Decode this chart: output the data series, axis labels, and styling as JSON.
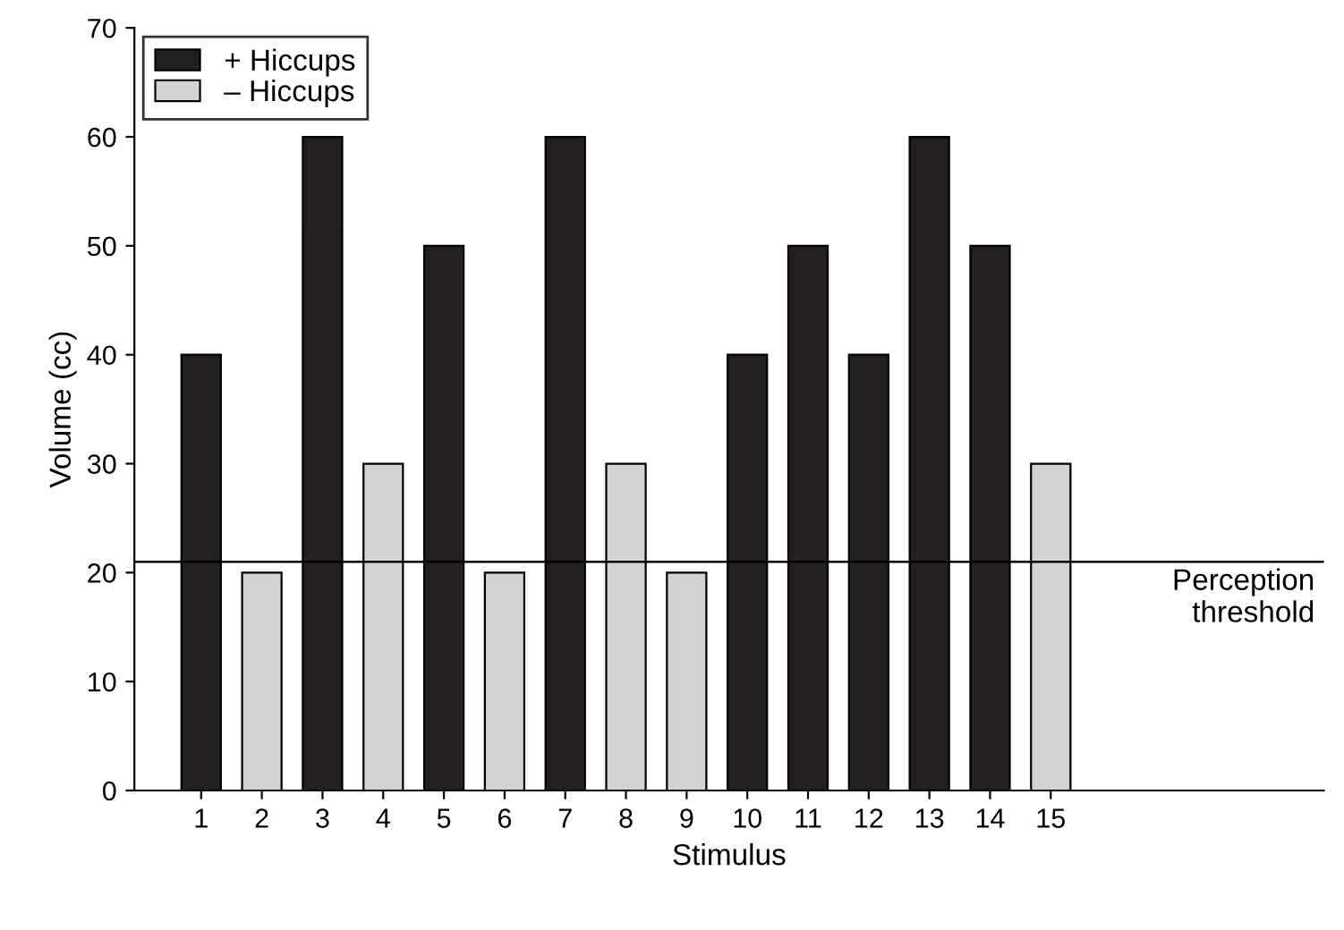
{
  "chart_data": {
    "type": "bar",
    "xlabel": "Stimulus",
    "ylabel": "Volume (cc)",
    "x": [
      1,
      2,
      3,
      4,
      5,
      6,
      7,
      8,
      9,
      10,
      11,
      12,
      13,
      14,
      15
    ],
    "series": [
      {
        "name": "+ Hiccups",
        "color": "#231f20",
        "values": [
          40,
          null,
          60,
          null,
          50,
          null,
          60,
          null,
          null,
          40,
          50,
          40,
          60,
          50,
          null
        ]
      },
      {
        "name": "– Hiccups",
        "color": "#d1d3d4",
        "values": [
          null,
          20,
          null,
          30,
          null,
          20,
          null,
          30,
          20,
          null,
          null,
          null,
          null,
          null,
          30
        ]
      }
    ],
    "xlim": [
      -0.1,
      19.5
    ],
    "xticks": [
      1,
      2,
      3,
      4,
      5,
      6,
      7,
      8,
      9,
      10,
      11,
      12,
      13,
      14,
      15
    ],
    "ylim": [
      0,
      70
    ],
    "yticks": [
      0,
      10,
      20,
      30,
      40,
      50,
      60,
      70
    ],
    "ref_lines": [
      {
        "axis": "y",
        "value": 21,
        "label": "Perception\nthreshold",
        "color": "#000000",
        "line_style": "solid"
      }
    ],
    "grid": false,
    "legend": "top left"
  }
}
